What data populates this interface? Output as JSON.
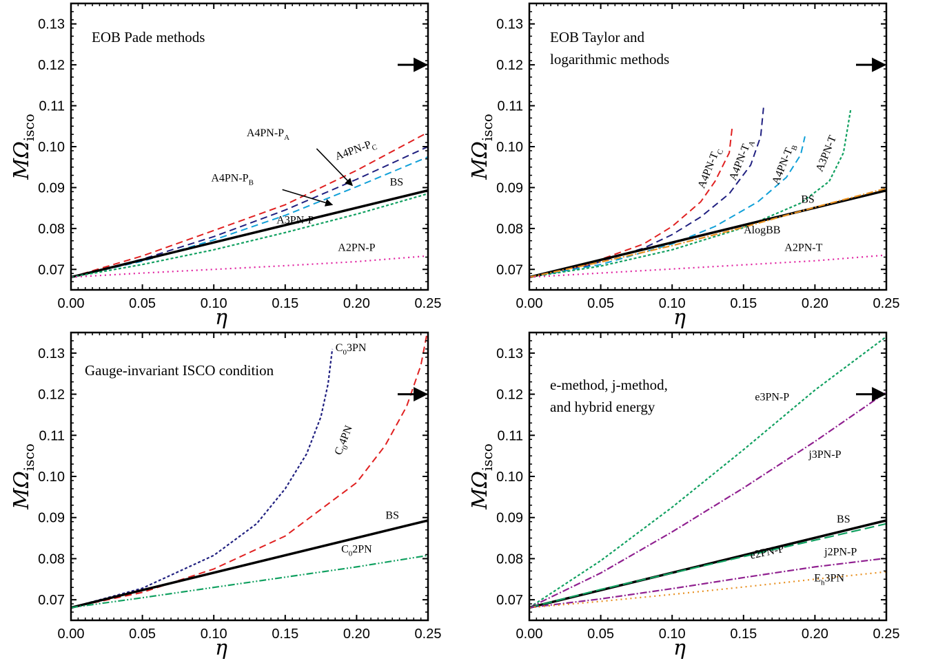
{
  "chart_data": [
    {
      "type": "line",
      "title_lines": [
        "EOB Pade methods"
      ],
      "xlabel": "η",
      "ylabel": "MΩ",
      "ylabel_sub": "isco",
      "xlim": [
        0,
        0.25
      ],
      "ylim": [
        0.065,
        0.135
      ],
      "xticks": [
        "0.00",
        "0.05",
        "0.10",
        "0.15",
        "0.20",
        "0.25"
      ],
      "yticks": [
        "0.07",
        "0.08",
        "0.09",
        "0.10",
        "0.11",
        "0.12",
        "0.13"
      ],
      "arrow": {
        "x": 0.25,
        "y": 0.12
      },
      "series": [
        {
          "label": "A4PN-P",
          "label_sub": "C",
          "color": "#e02020",
          "dash": "10,6",
          "width": 2,
          "x": [
            0,
            0.05,
            0.1,
            0.15,
            0.2,
            0.25
          ],
          "y": [
            0.0681,
            0.0733,
            0.0795,
            0.0858,
            0.0942,
            0.1035
          ],
          "label_pos": [
            0.2,
            0.0985
          ],
          "rotate": -20
        },
        {
          "label": "",
          "color": "#202080",
          "dash": "10,6",
          "width": 2,
          "x": [
            0,
            0.05,
            0.1,
            0.15,
            0.2,
            0.25
          ],
          "y": [
            0.0681,
            0.0725,
            0.078,
            0.0845,
            0.092,
            0.1
          ],
          "label_pos": [
            0.14,
            0.1
          ],
          "rotate": 0
        },
        {
          "label": "",
          "color": "#10a0d8",
          "dash": "10,6",
          "width": 2,
          "x": [
            0,
            0.05,
            0.1,
            0.15,
            0.2,
            0.25
          ],
          "y": [
            0.0681,
            0.072,
            0.0772,
            0.0832,
            0.0902,
            0.0975
          ],
          "label_pos": [
            0.12,
            0.0905
          ],
          "rotate": 0
        },
        {
          "label": "BS",
          "color": "#000000",
          "dash": "",
          "width": 3.5,
          "x": [
            0,
            0.25
          ],
          "y": [
            0.0681,
            0.0893
          ],
          "label_pos": [
            0.228,
            0.0905
          ],
          "rotate": 0
        },
        {
          "label": "A3PN-P",
          "color": "#10a060",
          "dash": "4,3",
          "width": 2.2,
          "x": [
            0,
            0.05,
            0.1,
            0.15,
            0.2,
            0.25
          ],
          "y": [
            0.0681,
            0.0712,
            0.0748,
            0.079,
            0.0835,
            0.0885
          ],
          "label_pos": [
            0.157,
            0.0812
          ],
          "rotate": 0
        },
        {
          "label": "A2PN-P",
          "color": "#e020a0",
          "dash": "2,5",
          "width": 2.2,
          "x": [
            0,
            0.05,
            0.1,
            0.15,
            0.2,
            0.25
          ],
          "y": [
            0.0681,
            0.0691,
            0.07,
            0.0709,
            0.0719,
            0.0733
          ],
          "label_pos": [
            0.2,
            0.0745
          ],
          "rotate": 0
        }
      ],
      "extra_labels": [
        {
          "label": "A4PN-P",
          "label_sub": "A",
          "pos": [
            0.138,
            0.1025
          ]
        },
        {
          "label": "A4PN-P",
          "label_sub": "B",
          "pos": [
            0.113,
            0.0915
          ]
        }
      ],
      "pointers": [
        {
          "from": [
            0.172,
            0.0995
          ],
          "to": [
            0.197,
            0.0905
          ]
        },
        {
          "from": [
            0.148,
            0.0895
          ],
          "to": [
            0.183,
            0.0858
          ]
        }
      ]
    },
    {
      "type": "line",
      "title_lines": [
        "EOB Taylor and",
        "logarithmic methods"
      ],
      "xlabel": "η",
      "ylabel": "MΩ",
      "ylabel_sub": "isco",
      "xlim": [
        0,
        0.25
      ],
      "ylim": [
        0.065,
        0.135
      ],
      "xticks": [
        "0.00",
        "0.05",
        "0.10",
        "0.15",
        "0.20",
        "0.25"
      ],
      "yticks": [
        "0.07",
        "0.08",
        "0.09",
        "0.10",
        "0.11",
        "0.12",
        "0.13"
      ],
      "arrow": {
        "x": 0.25,
        "y": 0.12
      },
      "series": [
        {
          "label": "A4PN-T",
          "label_sub": "C",
          "color": "#e02020",
          "dash": "10,6",
          "width": 2,
          "x": [
            0,
            0.04,
            0.08,
            0.1,
            0.12,
            0.13,
            0.14,
            0.142
          ],
          "y": [
            0.0681,
            0.0712,
            0.0762,
            0.0805,
            0.0865,
            0.0915,
            0.0985,
            0.1045
          ],
          "label_pos": [
            0.128,
            0.0945
          ],
          "rotate": -68
        },
        {
          "label": "A4PN-T",
          "label_sub": "A",
          "color": "#202080",
          "dash": "10,6",
          "width": 2,
          "x": [
            0,
            0.04,
            0.08,
            0.1,
            0.12,
            0.14,
            0.155,
            0.162,
            0.164
          ],
          "y": [
            0.0681,
            0.0708,
            0.0752,
            0.0785,
            0.0828,
            0.0885,
            0.0955,
            0.1025,
            0.1095
          ],
          "label_pos": [
            0.15,
            0.0965
          ],
          "rotate": -68
        },
        {
          "label": "A4PN-T",
          "label_sub": "B",
          "color": "#10a0d8",
          "dash": "10,6",
          "width": 2,
          "x": [
            0,
            0.05,
            0.1,
            0.13,
            0.16,
            0.18,
            0.19,
            0.193
          ],
          "y": [
            0.0681,
            0.0712,
            0.0762,
            0.0805,
            0.0865,
            0.0925,
            0.098,
            0.1025
          ],
          "label_pos": [
            0.18,
            0.0955
          ],
          "rotate": -68
        },
        {
          "label": "A3PN-T",
          "color": "#10a060",
          "dash": "4,3",
          "width": 2.2,
          "x": [
            0,
            0.05,
            0.1,
            0.15,
            0.19,
            0.21,
            0.22,
            0.225
          ],
          "y": [
            0.0681,
            0.0708,
            0.0748,
            0.0802,
            0.0862,
            0.0915,
            0.0985,
            0.109
          ],
          "label_pos": [
            0.21,
            0.098
          ],
          "rotate": -68
        },
        {
          "label": "BS",
          "color": "#000000",
          "dash": "",
          "width": 3.5,
          "x": [
            0,
            0.25
          ],
          "y": [
            0.0681,
            0.0893
          ],
          "label_pos": [
            0.195,
            0.0863
          ],
          "rotate": 0
        },
        {
          "label": "AlogBB",
          "color": "#e89020",
          "dash": "10,3,2,3",
          "width": 2.2,
          "x": [
            0,
            0.05,
            0.1,
            0.15,
            0.2,
            0.25
          ],
          "y": [
            0.0681,
            0.0718,
            0.0758,
            0.0803,
            0.0852,
            0.0898
          ],
          "label_pos": [
            0.163,
            0.0788
          ],
          "rotate": 0
        },
        {
          "label": "A2PN-T",
          "color": "#e020a0",
          "dash": "2,5",
          "width": 2.2,
          "x": [
            0,
            0.05,
            0.1,
            0.15,
            0.2,
            0.25
          ],
          "y": [
            0.0681,
            0.0691,
            0.0701,
            0.0711,
            0.0721,
            0.0735
          ],
          "label_pos": [
            0.192,
            0.0745
          ],
          "rotate": 0
        }
      ],
      "extra_labels": [],
      "pointers": []
    },
    {
      "type": "line",
      "title_lines": [
        "Gauge-invariant ISCO condition"
      ],
      "xlabel": "η",
      "ylabel": "MΩ",
      "ylabel_sub": "isco",
      "xlim": [
        0,
        0.25
      ],
      "ylim": [
        0.065,
        0.135
      ],
      "xticks": [
        "0.00",
        "0.05",
        "0.10",
        "0.15",
        "0.20",
        "0.25"
      ],
      "yticks": [
        "0.07",
        "0.08",
        "0.09",
        "0.10",
        "0.11",
        "0.12",
        "0.13"
      ],
      "arrow": {
        "x": 0.25,
        "y": 0.12
      },
      "series": [
        {
          "label": "C",
          "label_sub": "0",
          "label_tail": "3PN",
          "color": "#202080",
          "dash": "4,3",
          "width": 2.2,
          "x": [
            0,
            0.05,
            0.1,
            0.13,
            0.15,
            0.165,
            0.175,
            0.18,
            0.183
          ],
          "y": [
            0.0681,
            0.0728,
            0.0808,
            0.0885,
            0.097,
            0.1055,
            0.1145,
            0.1225,
            0.131
          ],
          "label_pos": [
            0.196,
            0.1305
          ],
          "rotate": 0
        },
        {
          "label": "C",
          "label_sub": "0",
          "label_tail": "4PN",
          "color": "#e02020",
          "dash": "10,6",
          "width": 2,
          "x": [
            0,
            0.05,
            0.1,
            0.15,
            0.2,
            0.22,
            0.235,
            0.245,
            0.25
          ],
          "y": [
            0.0681,
            0.0718,
            0.0775,
            0.0855,
            0.0985,
            0.1075,
            0.117,
            0.127,
            0.136
          ],
          "label_pos": [
            0.193,
            0.1085
          ],
          "rotate": -68
        },
        {
          "label": "BS",
          "color": "#000000",
          "dash": "",
          "width": 3.5,
          "x": [
            0,
            0.25
          ],
          "y": [
            0.0681,
            0.0893
          ],
          "label_pos": [
            0.225,
            0.0897
          ],
          "rotate": 0
        },
        {
          "label": "C",
          "label_sub": "0",
          "label_tail": "2PN",
          "color": "#10a060",
          "dash": "10,3,2,3,2,3",
          "width": 2.2,
          "x": [
            0,
            0.05,
            0.1,
            0.15,
            0.2,
            0.25
          ],
          "y": [
            0.0681,
            0.0705,
            0.073,
            0.0755,
            0.078,
            0.0808
          ],
          "label_pos": [
            0.2,
            0.0815
          ],
          "rotate": 0
        }
      ],
      "extra_labels": [],
      "pointers": []
    },
    {
      "type": "line",
      "title_lines": [
        "e-method, j-method,",
        "and hybrid energy"
      ],
      "xlabel": "η",
      "ylabel": "MΩ",
      "ylabel_sub": "isco",
      "xlim": [
        0,
        0.25
      ],
      "ylim": [
        0.065,
        0.135
      ],
      "xticks": [
        "0.00",
        "0.05",
        "0.10",
        "0.15",
        "0.20",
        "0.25"
      ],
      "yticks": [
        "0.07",
        "0.08",
        "0.09",
        "0.10",
        "0.11",
        "0.12",
        "0.13"
      ],
      "arrow": {
        "x": 0.25,
        "y": 0.12
      },
      "series": [
        {
          "label": "e3PN-P",
          "color": "#10a060",
          "dash": "4,3",
          "width": 2.2,
          "x": [
            0,
            0.05,
            0.1,
            0.15,
            0.2,
            0.25
          ],
          "y": [
            0.0681,
            0.0795,
            0.0925,
            0.1065,
            0.121,
            0.134
          ],
          "label_pos": [
            0.17,
            0.1185
          ],
          "rotate": 0
        },
        {
          "label": "j3PN-P",
          "color": "#902090",
          "dash": "10,3,2,3",
          "width": 2.2,
          "x": [
            0,
            0.05,
            0.1,
            0.15,
            0.2,
            0.25
          ],
          "y": [
            0.0681,
            0.0765,
            0.0865,
            0.0972,
            0.1085,
            0.1205
          ],
          "label_pos": [
            0.207,
            0.1045
          ],
          "rotate": 0
        },
        {
          "label": "BS",
          "color": "#000000",
          "dash": "",
          "width": 3.5,
          "x": [
            0,
            0.25
          ],
          "y": [
            0.0681,
            0.0893
          ],
          "label_pos": [
            0.22,
            0.0888
          ],
          "rotate": 0
        },
        {
          "label": "e2PN-P",
          "color": "#10a060",
          "dash": "14,6",
          "width": 2.2,
          "x": [
            0,
            0.05,
            0.1,
            0.15,
            0.2,
            0.25
          ],
          "y": [
            0.0681,
            0.0725,
            0.0765,
            0.0805,
            0.0845,
            0.0885
          ],
          "label_pos": [
            0.167,
            0.0808
          ],
          "rotate": -12
        },
        {
          "label": "j2PN-P",
          "color": "#902090",
          "dash": "10,3,2,3",
          "width": 2.2,
          "x": [
            0,
            0.05,
            0.1,
            0.15,
            0.2,
            0.25
          ],
          "y": [
            0.0681,
            0.0702,
            0.0727,
            0.0754,
            0.078,
            0.0801
          ],
          "label_pos": [
            0.218,
            0.0808
          ],
          "rotate": 0
        },
        {
          "label": "E",
          "label_sub": "h",
          "label_tail": "3PN",
          "color": "#e89020",
          "dash": "2,5",
          "width": 2.2,
          "x": [
            0,
            0.05,
            0.1,
            0.15,
            0.2,
            0.25
          ],
          "y": [
            0.0681,
            0.0696,
            0.0713,
            0.0731,
            0.075,
            0.0768
          ],
          "label_pos": [
            0.21,
            0.0745
          ],
          "rotate": 0
        }
      ],
      "extra_labels": [],
      "pointers": []
    }
  ]
}
